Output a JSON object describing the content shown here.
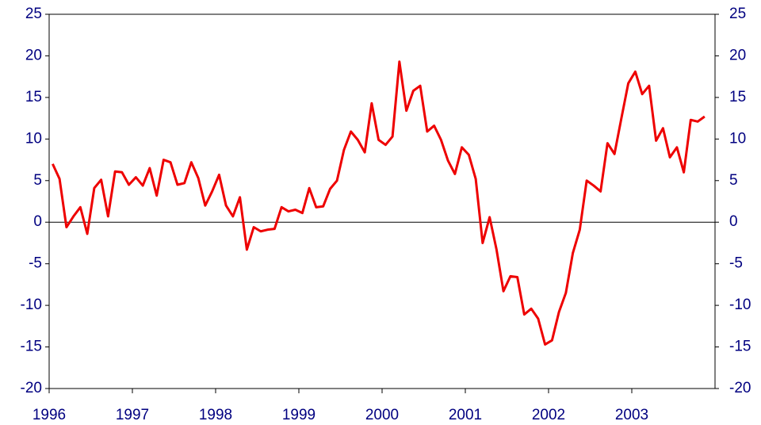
{
  "chart_data": {
    "type": "line",
    "x": [
      1996.042,
      1996.125,
      1996.208,
      1996.292,
      1996.375,
      1996.458,
      1996.542,
      1996.625,
      1996.708,
      1996.792,
      1996.875,
      1996.958,
      1997.042,
      1997.125,
      1997.208,
      1997.292,
      1997.375,
      1997.458,
      1997.542,
      1997.625,
      1997.708,
      1997.792,
      1997.875,
      1997.958,
      1998.042,
      1998.125,
      1998.208,
      1998.292,
      1998.375,
      1998.458,
      1998.542,
      1998.625,
      1998.708,
      1998.792,
      1998.875,
      1998.958,
      1999.042,
      1999.125,
      1999.208,
      1999.292,
      1999.375,
      1999.458,
      1999.542,
      1999.625,
      1999.708,
      1999.792,
      1999.875,
      1999.958,
      2000.042,
      2000.125,
      2000.208,
      2000.292,
      2000.375,
      2000.458,
      2000.542,
      2000.625,
      2000.708,
      2000.792,
      2000.875,
      2000.958,
      2001.042,
      2001.125,
      2001.208,
      2001.292,
      2001.375,
      2001.458,
      2001.542,
      2001.625,
      2001.708,
      2001.792,
      2001.875,
      2001.958,
      2002.042,
      2002.125,
      2002.208,
      2002.292,
      2002.375,
      2002.458,
      2002.542,
      2002.625,
      2002.708,
      2002.792,
      2002.875,
      2002.958,
      2003.042,
      2003.125,
      2003.208,
      2003.292,
      2003.375,
      2003.458,
      2003.542,
      2003.625,
      2003.708,
      2003.792,
      2003.875
    ],
    "series": [
      {
        "color": "#ee0000",
        "values": [
          7,
          5.2,
          -0.6,
          0.7,
          1.8,
          -1.4,
          4.1,
          5.1,
          0.7,
          6.1,
          6.0,
          4.5,
          5.4,
          4.4,
          6.5,
          3.2,
          7.5,
          7.2,
          4.5,
          4.7,
          7.2,
          5.3,
          2.0,
          3.7,
          5.7,
          2.0,
          0.7,
          3.0,
          -3.3,
          -0.6,
          -1.1,
          -0.9,
          -0.8,
          1.8,
          1.3,
          1.5,
          1.1,
          4.1,
          1.8,
          1.9,
          4.0,
          5.0,
          8.7,
          10.9,
          9.9,
          8.4,
          14.3,
          9.9,
          9.3,
          10.3,
          19.3,
          13.4,
          15.8,
          16.4,
          10.9,
          11.6,
          9.9,
          7.4,
          5.8,
          9.0,
          8.1,
          5.2,
          -2.5,
          0.6,
          -3.3,
          -8.3,
          -6.5,
          -6.6,
          -11.1,
          -10.4,
          -11.6,
          -14.7,
          -14.2,
          -10.8,
          -8.5,
          -3.7,
          -0.9,
          5.0,
          4.4,
          3.7,
          9.5,
          8.2,
          12.5,
          16.7,
          18.1,
          15.4,
          16.4,
          9.8,
          11.3,
          7.8,
          9.0,
          6.0,
          12.3,
          12.1,
          12.7
        ]
      }
    ],
    "xlim": [
      1996,
      2004
    ],
    "xticks": [
      1996,
      1997,
      1998,
      1999,
      2000,
      2001,
      2002,
      2003
    ],
    "ylim": [
      -20,
      25
    ],
    "yticks": [
      -20,
      -15,
      -10,
      -5,
      0,
      5,
      10,
      15,
      20,
      25
    ],
    "y2lim": [
      -20,
      25
    ],
    "y2ticks": [
      -20,
      -15,
      -10,
      -5,
      0,
      5,
      10,
      15,
      20,
      25
    ]
  }
}
